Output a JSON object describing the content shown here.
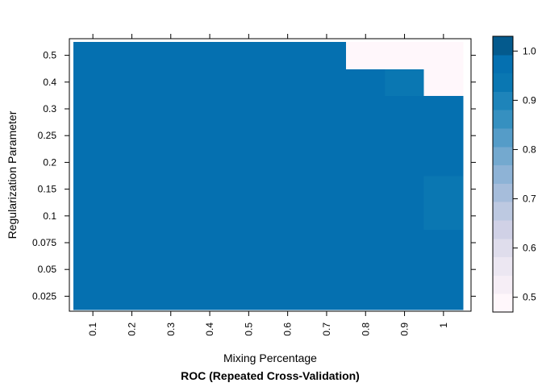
{
  "chart_data": {
    "type": "heatmap",
    "title": "ROC (Repeated Cross-Validation)",
    "xlabel": "Mixing Percentage",
    "ylabel": "Regularization Parameter",
    "x_categories": [
      "0.1",
      "0.2",
      "0.3",
      "0.4",
      "0.5",
      "0.6",
      "0.7",
      "0.8",
      "0.9",
      "1"
    ],
    "y_categories": [
      "0.025",
      "0.05",
      "0.075",
      "0.1",
      "0.15",
      "0.2",
      "0.25",
      "0.3",
      "0.4",
      "0.5"
    ],
    "values": [
      [
        0.97,
        0.97,
        0.97,
        0.97,
        0.97,
        0.97,
        0.97,
        0.97,
        0.97,
        0.97
      ],
      [
        0.97,
        0.97,
        0.97,
        0.97,
        0.97,
        0.97,
        0.97,
        0.97,
        0.97,
        0.97
      ],
      [
        0.97,
        0.97,
        0.97,
        0.97,
        0.97,
        0.97,
        0.97,
        0.97,
        0.97,
        0.97
      ],
      [
        0.97,
        0.97,
        0.97,
        0.97,
        0.97,
        0.97,
        0.97,
        0.97,
        0.97,
        0.93
      ],
      [
        0.97,
        0.97,
        0.97,
        0.97,
        0.97,
        0.97,
        0.97,
        0.97,
        0.97,
        0.93
      ],
      [
        0.97,
        0.97,
        0.97,
        0.97,
        0.97,
        0.97,
        0.97,
        0.97,
        0.97,
        0.97
      ],
      [
        0.97,
        0.97,
        0.97,
        0.97,
        0.97,
        0.97,
        0.97,
        0.97,
        0.97,
        0.97
      ],
      [
        0.99,
        0.97,
        0.97,
        0.97,
        0.97,
        0.97,
        0.97,
        0.97,
        0.97,
        0.97
      ],
      [
        0.99,
        0.97,
        0.97,
        0.97,
        0.97,
        0.97,
        0.97,
        0.97,
        0.94,
        0.5
      ],
      [
        0.99,
        0.97,
        0.97,
        0.97,
        0.97,
        0.97,
        0.97,
        0.5,
        0.5,
        0.5
      ]
    ],
    "colorbar": {
      "ticks": [
        "0.5",
        "0.6",
        "0.7",
        "0.8",
        "0.9",
        "1.0"
      ],
      "range": [
        0.47,
        1.03
      ],
      "colors": [
        "#FFF7FB",
        "#F6EEF6",
        "#ECE7F2",
        "#DFDDEC",
        "#D0D1E6",
        "#BDC9E1",
        "#A6BDDB",
        "#8EB3D6",
        "#74A9CF",
        "#559CC8",
        "#3690C0",
        "#1E84BA",
        "#0A77B2",
        "#0570B0",
        "#045A8D"
      ]
    },
    "grid": false,
    "legend": "right"
  }
}
